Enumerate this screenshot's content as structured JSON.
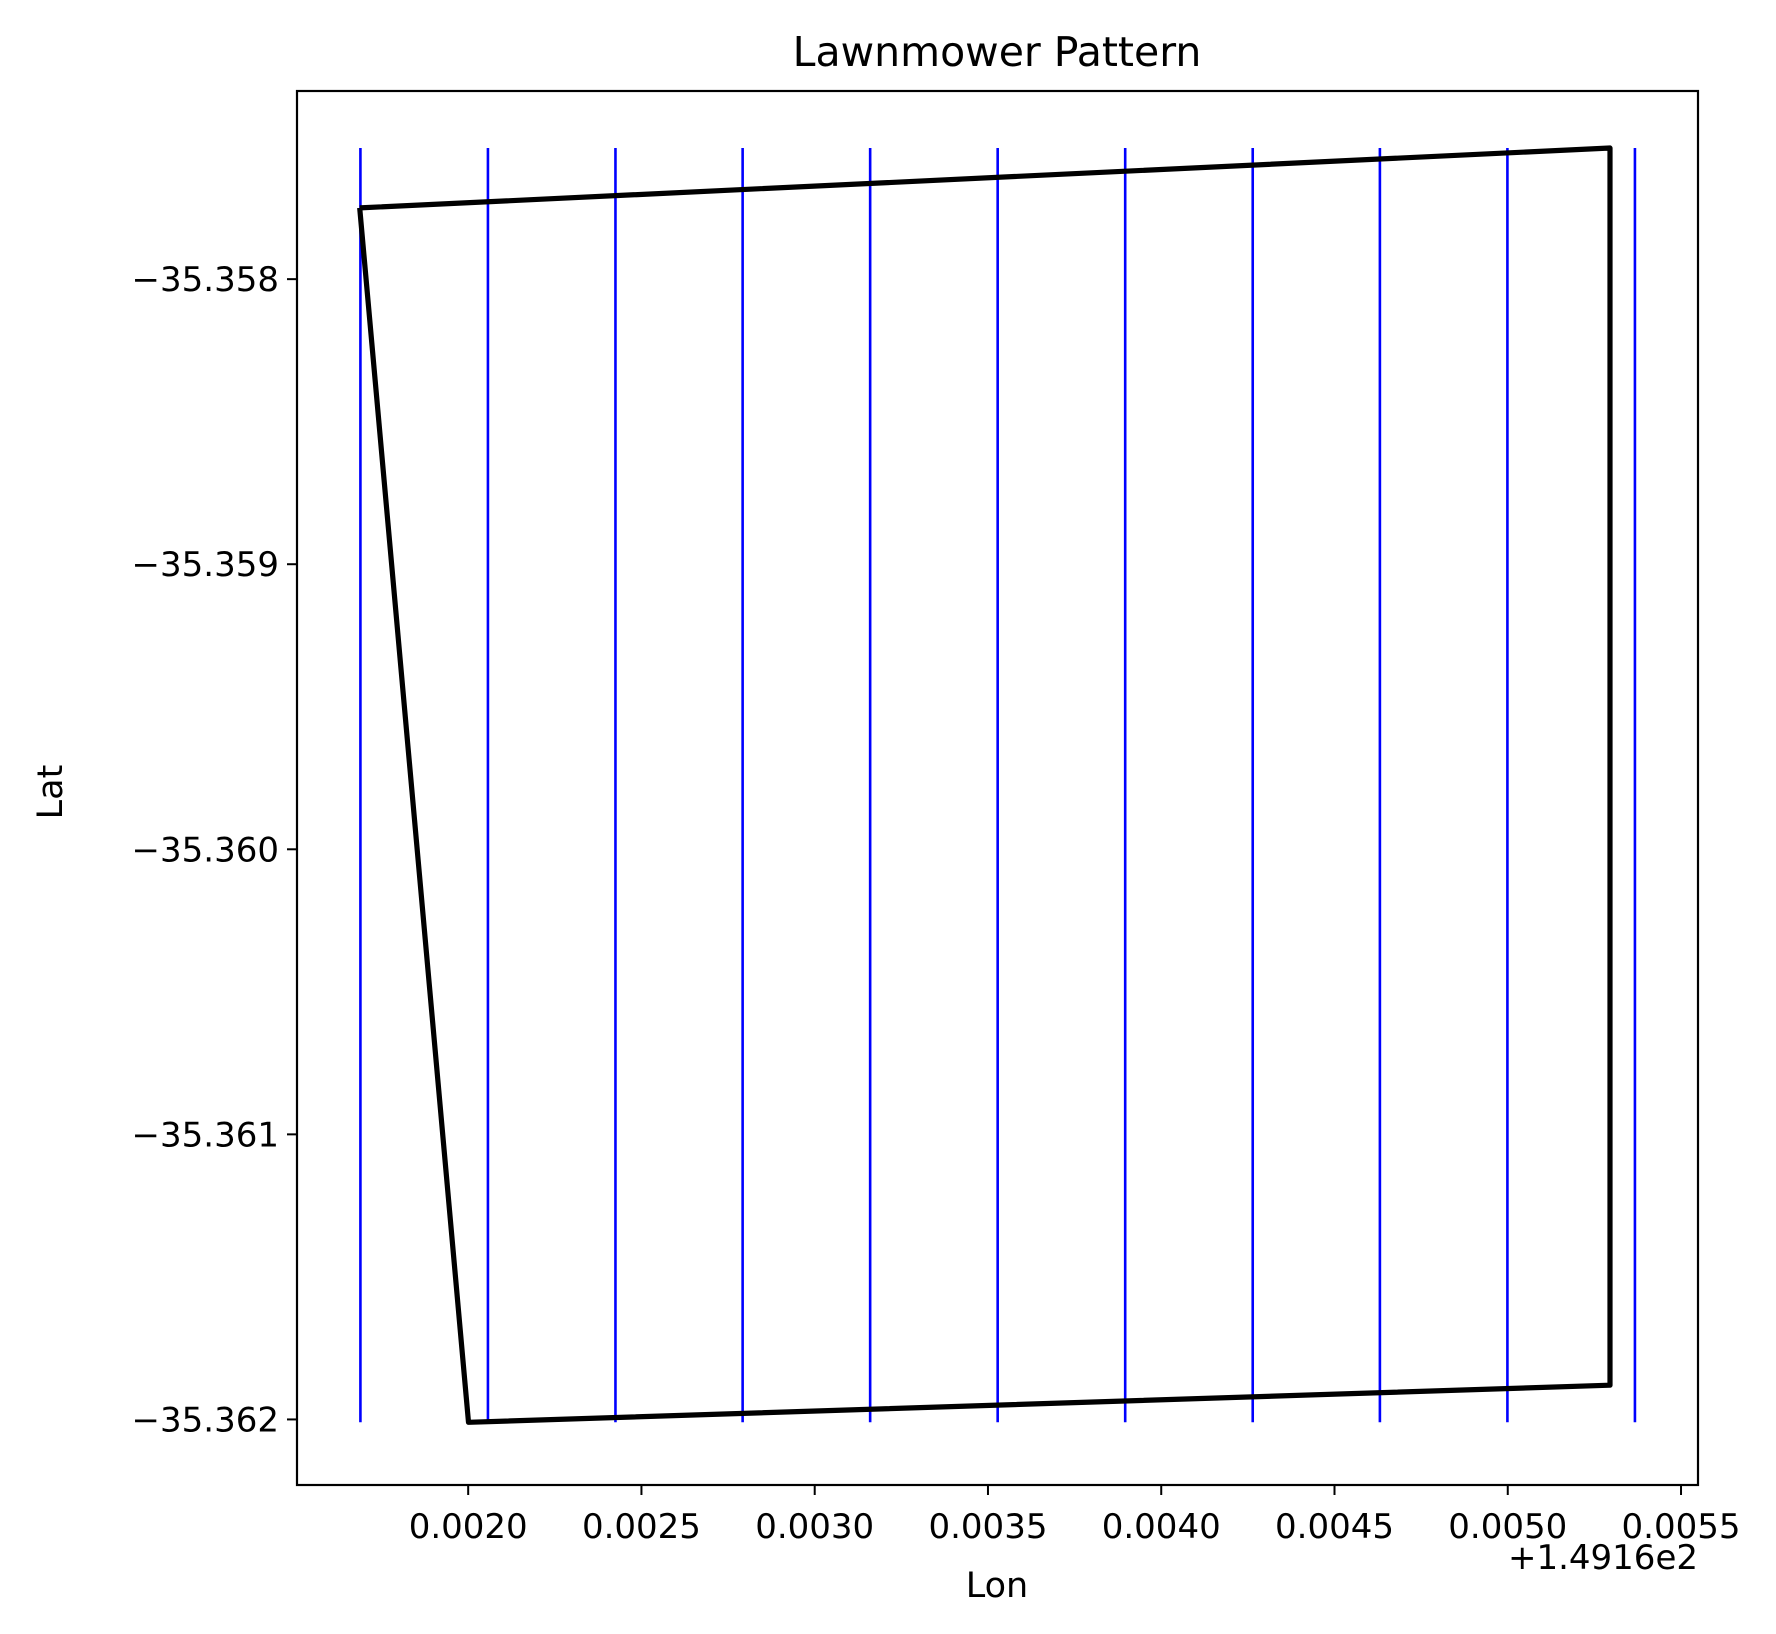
{
  "chart_data": {
    "type": "line",
    "title": "Lawnmower Pattern",
    "xlabel": "Lon",
    "ylabel": "Lat",
    "x_offset_label": "+1.4916e2",
    "xlim": [
      0.001506,
      0.005549
    ],
    "ylim": [
      -35.36223,
      -35.35734
    ],
    "xticks": [
      0.002,
      0.0025,
      0.003,
      0.0035,
      0.004,
      0.0045,
      0.005,
      0.0055
    ],
    "xtick_labels": [
      "0.0020",
      "0.0025",
      "0.0030",
      "0.0035",
      "0.0040",
      "0.0045",
      "0.0050",
      "0.0055"
    ],
    "yticks": [
      -35.358,
      -35.359,
      -35.36,
      -35.361,
      -35.362
    ],
    "ytick_labels": [
      "−35.358",
      "−35.359",
      "−35.360",
      "−35.361",
      "−35.362"
    ],
    "grid": false,
    "boundary": {
      "color": "#000000",
      "points": [
        {
          "x": 0.001687,
          "y": -35.35775
        },
        {
          "x": 0.005295,
          "y": -35.35754
        },
        {
          "x": 0.005295,
          "y": -35.36188
        },
        {
          "x": 0.002001,
          "y": -35.36201
        },
        {
          "x": 0.001687,
          "y": -35.35775
        }
      ]
    },
    "sweep_lines": {
      "color": "#0000ff",
      "y_range": [
        -35.35754,
        -35.36201
      ],
      "x": [
        0.001689,
        0.002057,
        0.002425,
        0.002792,
        0.00316,
        0.003528,
        0.003896,
        0.004264,
        0.004631,
        0.004999,
        0.005367
      ]
    }
  }
}
